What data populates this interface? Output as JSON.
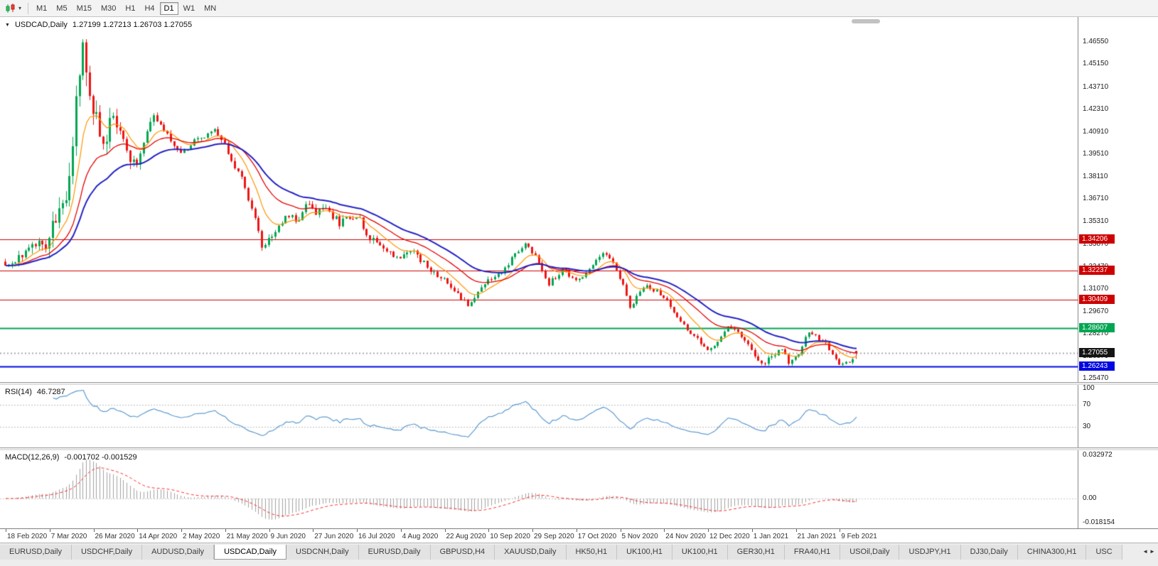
{
  "icons": {
    "symbol_marker": "▼",
    "toolbar_caret": "▾",
    "tab_scroll_left": "◄",
    "tab_scroll_right": "►"
  },
  "toolbar": {
    "timeframes": [
      "M1",
      "M5",
      "M15",
      "M30",
      "H1",
      "H4",
      "D1",
      "W1",
      "MN"
    ],
    "active_timeframe": "D1"
  },
  "chart": {
    "symbol_title": "USDCAD,Daily",
    "ohlc_text": "1.27199 1.27213 1.26703 1.27055",
    "price_ticks": [
      "1.46550",
      "1.45150",
      "1.43710",
      "1.42310",
      "1.40910",
      "1.39510",
      "1.38110",
      "1.36710",
      "1.35310",
      "1.33870",
      "1.32470",
      "1.31070",
      "1.29670",
      "1.28270",
      "1.26870",
      "1.25470"
    ],
    "levels": [
      {
        "label": "1.34206",
        "price": 1.34206,
        "color": "#cc0000",
        "thickness": 1
      },
      {
        "label": "1.32237",
        "price": 1.32237,
        "color": "#cc0000",
        "thickness": 1
      },
      {
        "label": "1.30409",
        "price": 1.30409,
        "color": "#cc0000",
        "thickness": 1
      },
      {
        "label": "1.28607",
        "price": 1.28607,
        "color": "#00a651",
        "thickness": 2
      },
      {
        "label": "1.26243",
        "price": 1.26243,
        "color": "#0008e0",
        "thickness": 2
      }
    ],
    "current_price": {
      "label": "1.27055",
      "price": 1.27055,
      "color": "#141414"
    },
    "date_labels": [
      "18 Feb 2020",
      "7 Mar 2020",
      "26 Mar 2020",
      "14 Apr 2020",
      "2 May 2020",
      "21 May 2020",
      "9 Jun 2020",
      "27 Jun 2020",
      "16 Jul 2020",
      "4 Aug 2020",
      "22 Aug 2020",
      "10 Sep 2020",
      "29 Sep 2020",
      "17 Oct 2020",
      "5 Nov 2020",
      "24 Nov 2020",
      "12 Dec 2020",
      "1 Jan 2021",
      "21 Jan 2021",
      "9 Feb 2021"
    ]
  },
  "rsi": {
    "name": "RSI(14)",
    "value": "46.7287",
    "scale": [
      "100",
      "70",
      "30"
    ],
    "level_lines": [
      70,
      30
    ]
  },
  "macd": {
    "name": "MACD(12,26,9)",
    "values": "-0.001702 -0.001529",
    "scale": [
      "0.032972",
      "0.00",
      "-0.018154"
    ]
  },
  "tabs": {
    "active_index": 3,
    "items": [
      "EURUSD,Daily",
      "USDCHF,Daily",
      "AUDUSD,Daily",
      "USDCAD,Daily",
      "USDCNH,Daily",
      "EURUSD,Daily",
      "GBPUSD,H4",
      "XAUUSD,Daily",
      "HK50,H1",
      "UK100,H1",
      "UK100,H1",
      "GER30,H1",
      "FRA40,H1",
      "USOil,Daily",
      "USDJPY,H1",
      "DJ30,Daily",
      "CHINA300,H1",
      "USC"
    ]
  },
  "chart_data": {
    "type": "candlestick",
    "symbol": "USDCAD",
    "timeframe": "Daily",
    "visible_range": {
      "start": "18 Feb 2020",
      "end": "16 Feb 2021"
    },
    "y_axis": {
      "min": 1.2525,
      "max": 1.4811
    },
    "candles": 253,
    "seed": 20210216,
    "last_ohlc": [
      1.27199,
      1.27213,
      1.26703,
      1.27055
    ],
    "horizontal_levels": [
      1.34206,
      1.32237,
      1.30409,
      1.28607,
      1.26243
    ],
    "indicators": [
      {
        "name": "MA slow",
        "type": "ema",
        "period": 34,
        "color_key": "ma_slow"
      },
      {
        "name": "MA mid",
        "type": "ema",
        "period": 21,
        "color_key": "ma_mid"
      },
      {
        "name": "MA fast",
        "type": "ema",
        "period": 9,
        "color_key": "ma_fast"
      },
      {
        "name": "RSI",
        "period": 14,
        "current": 46.7287
      },
      {
        "name": "MACD",
        "fast": 12,
        "slow": 26,
        "signal": 9,
        "current": [
          -0.001702,
          -0.001529
        ]
      }
    ],
    "colors": {
      "up": "#00a651",
      "down": "#ee1414",
      "ma_slow": "#2222c4",
      "ma_mid": "#e60000",
      "ma_fast": "#ff9500",
      "rsi": "#5f9bd1",
      "macd_hist": "#a0a0a0",
      "macd_signal": "#ff2a2a"
    },
    "close_path_anchors": [
      [
        0.0,
        1.3248
      ],
      [
        0.016,
        1.33
      ],
      [
        0.032,
        1.341
      ],
      [
        0.048,
        1.336
      ],
      [
        0.06,
        1.356
      ],
      [
        0.072,
        1.372
      ],
      [
        0.08,
        1.41
      ],
      [
        0.087,
        1.45
      ],
      [
        0.091,
        1.464
      ],
      [
        0.099,
        1.438
      ],
      [
        0.107,
        1.415
      ],
      [
        0.115,
        1.402
      ],
      [
        0.127,
        1.418
      ],
      [
        0.143,
        1.396
      ],
      [
        0.155,
        1.3905
      ],
      [
        0.175,
        1.42
      ],
      [
        0.19,
        1.408
      ],
      [
        0.206,
        1.396
      ],
      [
        0.222,
        1.403
      ],
      [
        0.246,
        1.411
      ],
      [
        0.262,
        1.397
      ],
      [
        0.278,
        1.379
      ],
      [
        0.294,
        1.355
      ],
      [
        0.302,
        1.337
      ],
      [
        0.312,
        1.344
      ],
      [
        0.33,
        1.356
      ],
      [
        0.345,
        1.354
      ],
      [
        0.353,
        1.366
      ],
      [
        0.365,
        1.359
      ],
      [
        0.377,
        1.361
      ],
      [
        0.393,
        1.352
      ],
      [
        0.413,
        1.357
      ],
      [
        0.429,
        1.342
      ],
      [
        0.445,
        1.336
      ],
      [
        0.464,
        1.33
      ],
      [
        0.48,
        1.334
      ],
      [
        0.5,
        1.323
      ],
      [
        0.516,
        1.316
      ],
      [
        0.532,
        1.308
      ],
      [
        0.544,
        1.301
      ],
      [
        0.552,
        1.306
      ],
      [
        0.567,
        1.316
      ],
      [
        0.583,
        1.32
      ],
      [
        0.599,
        1.333
      ],
      [
        0.611,
        1.34
      ],
      [
        0.623,
        1.331
      ],
      [
        0.639,
        1.314
      ],
      [
        0.655,
        1.323
      ],
      [
        0.671,
        1.315
      ],
      [
        0.687,
        1.324
      ],
      [
        0.702,
        1.333
      ],
      [
        0.714,
        1.329
      ],
      [
        0.726,
        1.313
      ],
      [
        0.734,
        1.299
      ],
      [
        0.742,
        1.306
      ],
      [
        0.754,
        1.313
      ],
      [
        0.766,
        1.309
      ],
      [
        0.778,
        1.304
      ],
      [
        0.79,
        1.293
      ],
      [
        0.802,
        1.285
      ],
      [
        0.814,
        1.279
      ],
      [
        0.826,
        1.2715
      ],
      [
        0.838,
        1.279
      ],
      [
        0.848,
        1.287
      ],
      [
        0.862,
        1.283
      ],
      [
        0.877,
        1.273
      ],
      [
        0.889,
        1.263
      ],
      [
        0.901,
        1.269
      ],
      [
        0.913,
        1.2735
      ],
      [
        0.921,
        1.2645
      ],
      [
        0.932,
        1.269
      ],
      [
        0.944,
        1.2845
      ],
      [
        0.954,
        1.28
      ],
      [
        0.964,
        1.277
      ],
      [
        0.972,
        1.27
      ],
      [
        0.982,
        1.263
      ],
      [
        0.992,
        1.265
      ],
      [
        1.0,
        1.2706
      ]
    ]
  }
}
